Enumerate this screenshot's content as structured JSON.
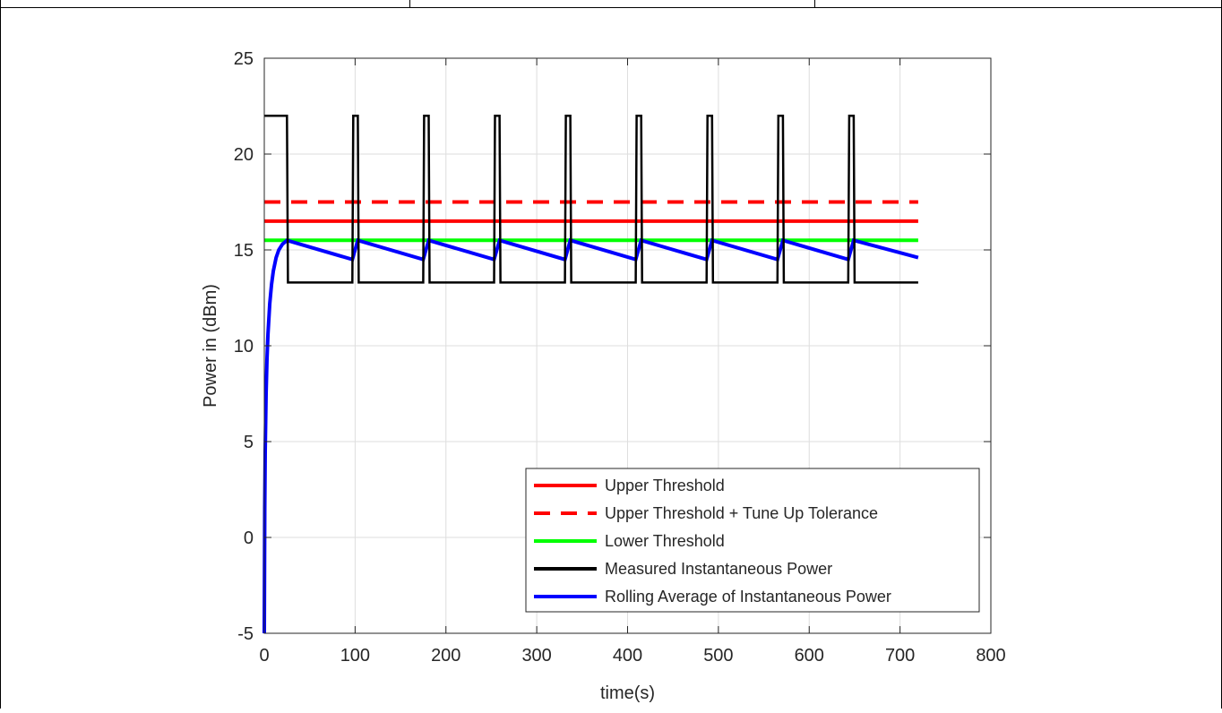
{
  "chart_data": {
    "type": "line",
    "xlabel": "time(s)",
    "ylabel": "Power in (dBm)",
    "xlim": [
      0,
      800
    ],
    "ylim": [
      -5,
      25
    ],
    "xticks": [
      0,
      100,
      200,
      300,
      400,
      500,
      600,
      700,
      800
    ],
    "yticks": [
      -5,
      0,
      5,
      10,
      15,
      20,
      25
    ],
    "grid": true,
    "legend_position": "bottom-right",
    "series": [
      {
        "name": "Upper Threshold",
        "color": "#ff0000",
        "style": "solid",
        "x": [
          0,
          720
        ],
        "y": [
          16.5,
          16.5
        ]
      },
      {
        "name": "Upper Threshold + Tune Up Tolerance",
        "color": "#ff0000",
        "style": "dashed",
        "x": [
          0,
          720
        ],
        "y": [
          17.5,
          17.5
        ]
      },
      {
        "name": "Lower Threshold",
        "color": "#00ff00",
        "style": "solid",
        "x": [
          0,
          720
        ],
        "y": [
          15.5,
          15.5
        ]
      },
      {
        "name": "Measured Instantaneous Power",
        "color": "#000000",
        "style": "solid",
        "x": [
          0,
          25,
          26,
          97,
          98,
          103,
          104,
          175,
          176,
          181,
          182,
          253,
          254,
          259,
          260,
          331,
          332,
          337,
          338,
          409,
          410,
          415,
          416,
          487,
          488,
          493,
          494,
          565,
          566,
          571,
          572,
          643,
          644,
          649,
          650,
          720
        ],
        "y": [
          22,
          22,
          13.3,
          13.3,
          22,
          22,
          13.3,
          13.3,
          22,
          22,
          13.3,
          13.3,
          22,
          22,
          13.3,
          13.3,
          22,
          22,
          13.3,
          13.3,
          22,
          22,
          13.3,
          13.3,
          22,
          22,
          13.3,
          13.3,
          22,
          22,
          13.3,
          13.3,
          22,
          22,
          13.3,
          13.3
        ]
      },
      {
        "name": "Rolling Average of Instantaneous Power",
        "color": "#0000ff",
        "style": "solid",
        "x": [
          0,
          0.5,
          1,
          2,
          3,
          4,
          6,
          8,
          10,
          13,
          16,
          20,
          25,
          97,
          103,
          175,
          181,
          253,
          259,
          331,
          337,
          409,
          415,
          487,
          493,
          565,
          571,
          643,
          649,
          720
        ],
        "y": [
          -5,
          1.5,
          4.5,
          7.5,
          9.3,
          10.6,
          12.2,
          13.2,
          13.9,
          14.6,
          15.0,
          15.3,
          15.5,
          14.5,
          15.5,
          14.5,
          15.5,
          14.5,
          15.5,
          14.5,
          15.5,
          14.5,
          15.5,
          14.5,
          15.5,
          14.5,
          15.5,
          14.5,
          15.5,
          14.6
        ]
      }
    ]
  }
}
